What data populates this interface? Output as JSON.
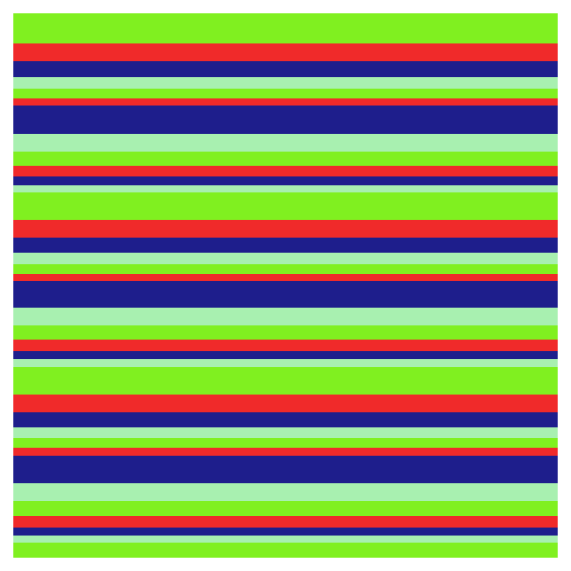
{
  "palette": {
    "green": "#80f020",
    "red": "#f02a2a",
    "navy": "#1e1e8c",
    "mint": "#a8f0b0"
  },
  "stripe_sequence": [
    "green",
    "red",
    "navy",
    "mint",
    "green",
    "red",
    "navy",
    "mint",
    "green",
    "red",
    "navy",
    "mint",
    "green",
    "red",
    "navy",
    "mint",
    "green",
    "red",
    "navy",
    "mint",
    "green",
    "red",
    "navy",
    "mint",
    "green",
    "red",
    "navy",
    "mint",
    "green",
    "red",
    "navy",
    "mint",
    "green",
    "red",
    "navy",
    "mint",
    "green"
  ]
}
